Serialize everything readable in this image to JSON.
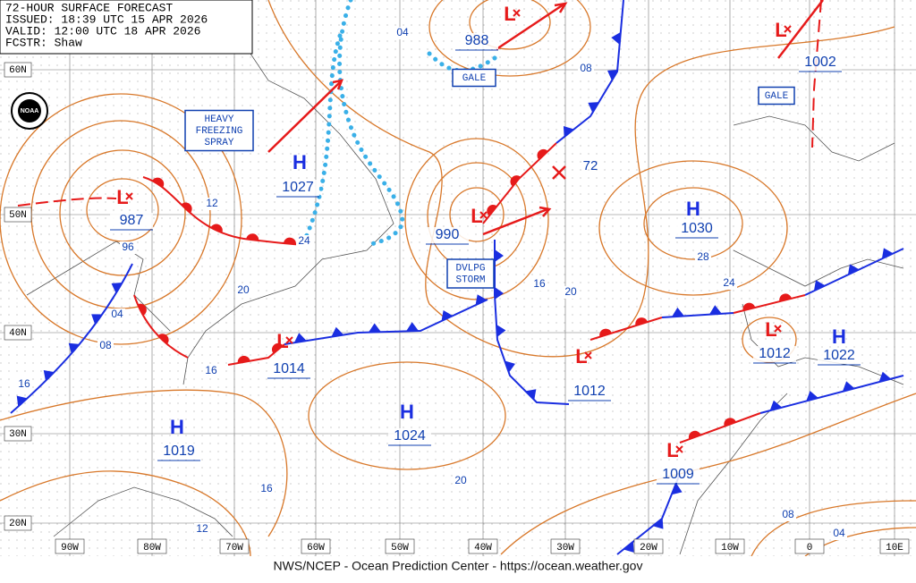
{
  "header": {
    "lines": [
      "72-HOUR SURFACE FORECAST",
      "ISSUED: 18:39 UTC 15 APR 2026",
      "VALID:  12:00 UTC 18 APR 2026",
      "FCSTR:  Shaw"
    ]
  },
  "logo": "NOAA",
  "grid": {
    "longitudes": [
      "90W",
      "80W",
      "70W",
      "60W",
      "50W",
      "40W",
      "30W",
      "20W",
      "10W",
      "0",
      "10E"
    ],
    "latitudes": [
      "60N",
      "50N",
      "40N",
      "30N",
      "20N"
    ]
  },
  "centers": [
    {
      "type": "L",
      "pressure": "987"
    },
    {
      "type": "H",
      "pressure": "1027"
    },
    {
      "type": "L",
      "pressure": "990"
    },
    {
      "type": "L",
      "pressure": "988"
    },
    {
      "type": "L",
      "pressure": "1002"
    },
    {
      "type": "H",
      "pressure": "1030"
    },
    {
      "type": "L",
      "pressure": "1014"
    },
    {
      "type": "L",
      "pressure": "1012"
    },
    {
      "type": "L",
      "pressure": "1012"
    },
    {
      "type": "H",
      "pressure": "1022"
    },
    {
      "type": "H",
      "pressure": "1019"
    },
    {
      "type": "H",
      "pressure": "1024"
    },
    {
      "type": "L",
      "pressure": "1009"
    }
  ],
  "isobar_labels": [
    "04",
    "08",
    "12",
    "24",
    "20",
    "96",
    "04",
    "08",
    "16",
    "16",
    "16",
    "20",
    "28",
    "24",
    "20",
    "16",
    "12",
    "08",
    "04"
  ],
  "track_label": "72",
  "warnings": [
    {
      "lines": [
        "GALE"
      ]
    },
    {
      "lines": [
        "GALE"
      ]
    },
    {
      "lines": [
        "DVLPG",
        "STORM"
      ]
    },
    {
      "lines": [
        "HEAVY",
        "FREEZING",
        "SPRAY"
      ]
    }
  ],
  "footer": "NWS/NCEP - Ocean Prediction Center - https://ocean.weather.gov"
}
